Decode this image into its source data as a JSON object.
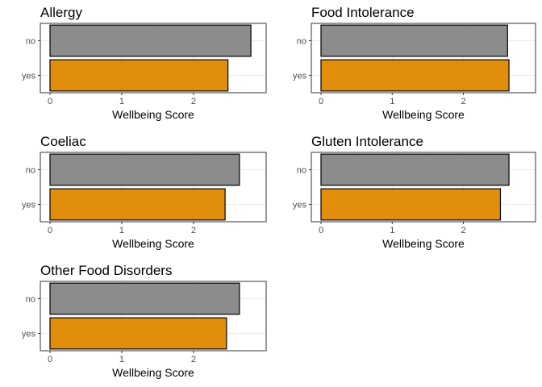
{
  "chart_data": [
    {
      "type": "bar",
      "orientation": "horizontal",
      "title": "Allergy",
      "xlabel": "Wellbeing Score",
      "categories": [
        "no",
        "yes"
      ],
      "values": [
        2.8,
        2.48
      ],
      "xlim": [
        0,
        2.9
      ],
      "xticks": [
        "0",
        "1",
        "2"
      ],
      "grid": true
    },
    {
      "type": "bar",
      "orientation": "horizontal",
      "title": "Food Intolerance",
      "xlabel": "Wellbeing Score",
      "categories": [
        "no",
        "yes"
      ],
      "values": [
        2.62,
        2.64
      ],
      "xlim": [
        0,
        2.9
      ],
      "xticks": [
        "0",
        "1",
        "2"
      ],
      "grid": true
    },
    {
      "type": "bar",
      "orientation": "horizontal",
      "title": "Coeliac",
      "xlabel": "Wellbeing Score",
      "categories": [
        "no",
        "yes"
      ],
      "values": [
        2.64,
        2.44
      ],
      "xlim": [
        0,
        2.9
      ],
      "xticks": [
        "0",
        "1",
        "2"
      ],
      "grid": true
    },
    {
      "type": "bar",
      "orientation": "horizontal",
      "title": "Gluten Intolerance",
      "xlabel": "Wellbeing Score",
      "categories": [
        "no",
        "yes"
      ],
      "values": [
        2.64,
        2.52
      ],
      "xlim": [
        0,
        2.9
      ],
      "xticks": [
        "0",
        "1",
        "2"
      ],
      "grid": true
    },
    {
      "type": "bar",
      "orientation": "horizontal",
      "title": "Other Food Disorders",
      "xlabel": "Wellbeing Score",
      "categories": [
        "no",
        "yes"
      ],
      "values": [
        2.64,
        2.46
      ],
      "xlim": [
        0,
        2.9
      ],
      "xticks": [
        "0",
        "1",
        "2"
      ],
      "grid": true
    }
  ],
  "colors": {
    "no": "#8c8c8c",
    "yes": "#e08e0b",
    "bar_outline": "#000000",
    "panel_border": "#333333",
    "grid_major": "#ebebeb",
    "grid_minor": "#f5f5f5",
    "text": "#4d4d4d"
  }
}
